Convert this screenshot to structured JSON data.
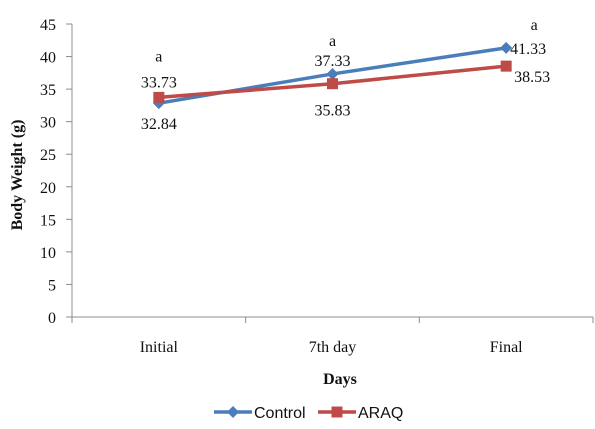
{
  "chart_data": {
    "type": "line",
    "categories": [
      "Initial",
      "7th day",
      "Final"
    ],
    "series": [
      {
        "name": "Control",
        "values": [
          32.84,
          37.33,
          41.33
        ],
        "color": "#4a7ebb",
        "marker": "diamond"
      },
      {
        "name": "ARAQ",
        "values": [
          33.73,
          35.83,
          38.53
        ],
        "color": "#be4b48",
        "marker": "square"
      }
    ],
    "xlabel": "Days",
    "ylabel": "Body Weight (g)",
    "ylim": [
      0,
      45
    ],
    "yticks": [
      0,
      5,
      10,
      15,
      20,
      25,
      30,
      35,
      40,
      45
    ],
    "grid": false,
    "legend_position": "bottom",
    "significance_letters": [
      "a",
      "a",
      "a"
    ]
  }
}
